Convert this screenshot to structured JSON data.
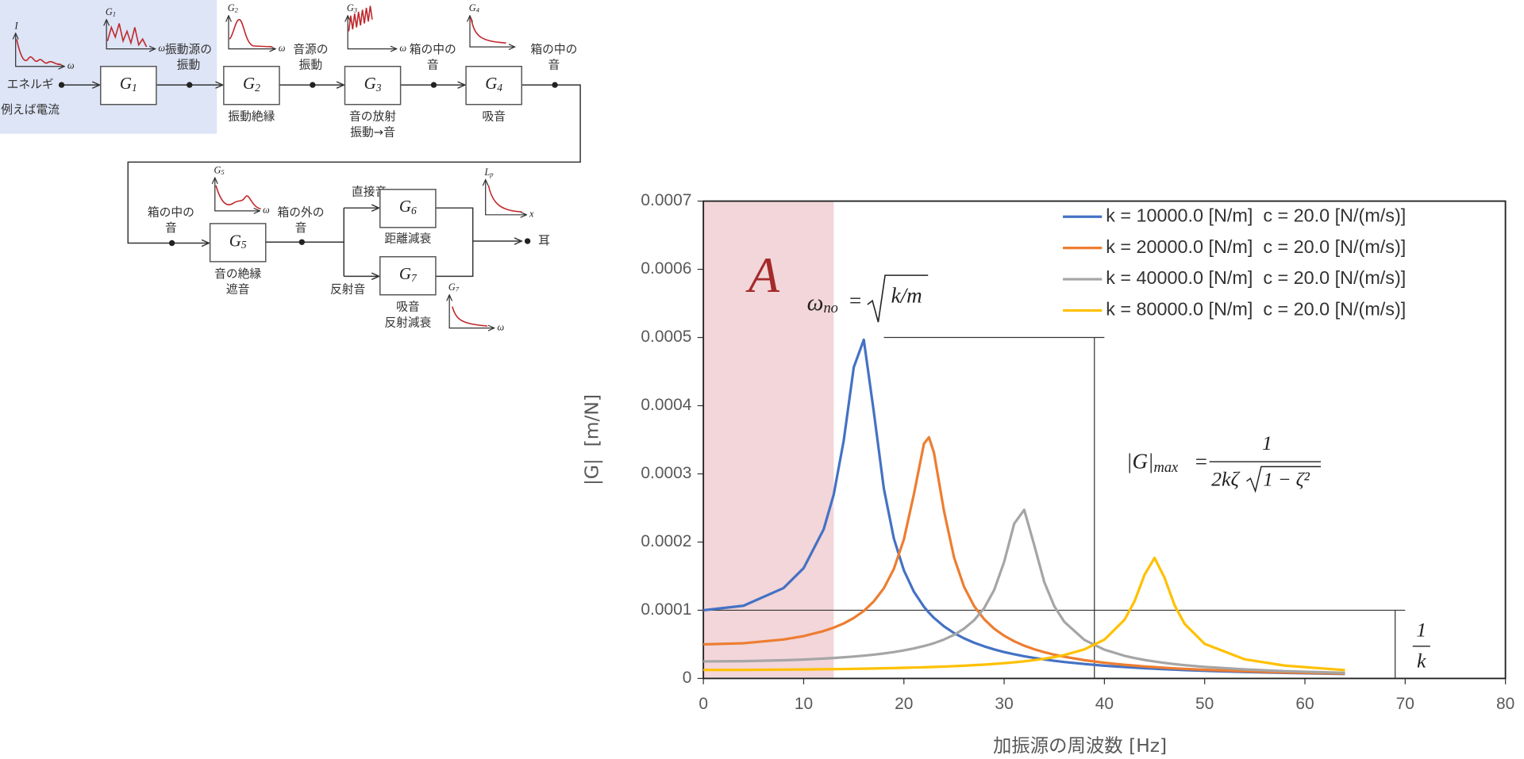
{
  "diagram": {
    "input": {
      "label": "エネルギ",
      "example": "例えば電流"
    },
    "blocks": [
      {
        "symbol": "G",
        "sub": "1"
      },
      {
        "symbol": "G",
        "sub": "2",
        "caption": [
          "振動絶縁"
        ]
      },
      {
        "symbol": "G",
        "sub": "3",
        "caption": [
          "音の放射",
          "振動→音"
        ]
      },
      {
        "symbol": "G",
        "sub": "4",
        "caption": [
          "吸音"
        ]
      },
      {
        "symbol": "G",
        "sub": "5",
        "caption": [
          "音の絶縁",
          "遮音"
        ]
      },
      {
        "symbol": "G",
        "sub": "6",
        "caption": [
          "距離減衰"
        ]
      },
      {
        "symbol": "G",
        "sub": "7",
        "caption": [
          "吸音",
          "反射減衰"
        ]
      }
    ],
    "signals": [
      [
        "振動源の",
        "振動"
      ],
      [
        "音源の",
        "振動"
      ],
      [
        "箱の中の",
        "音"
      ],
      [
        "箱の中の",
        "音"
      ],
      [
        "箱の中の",
        "音"
      ],
      [
        "箱の外の",
        "音"
      ]
    ],
    "paths": [
      "直接音",
      "反射音"
    ],
    "output": "耳",
    "sketches": [
      {
        "y": "I",
        "x": "ω"
      },
      {
        "y": "G",
        "y_sub": "1",
        "x": "ω"
      },
      {
        "y": "G",
        "y_sub": "2",
        "x": "ω"
      },
      {
        "y": "G",
        "y_sub": "3",
        "x": "ω"
      },
      {
        "y": "G",
        "y_sub": "4"
      },
      {
        "y": "G",
        "y_sub": "5",
        "x": "ω"
      },
      {
        "y": "L",
        "y_sub": "p",
        "x": "x"
      },
      {
        "y": "G",
        "y_sub": "7",
        "x": "ω"
      }
    ]
  },
  "chart_data": {
    "type": "line",
    "x_label": "加振源の周波数 [Hz]",
    "y_label": "|G|  [m/N]",
    "xlim": [
      0,
      80
    ],
    "xticks": [
      0,
      10,
      20,
      30,
      40,
      50,
      60,
      70,
      80
    ],
    "ylim": [
      0,
      0.0007
    ],
    "yticks": [
      0,
      0.0001,
      0.0002,
      0.0003,
      0.0004,
      0.0005,
      0.0006,
      0.0007
    ],
    "grid": false,
    "legend": "upper right",
    "x": [
      0,
      4,
      8,
      10,
      12,
      13,
      14,
      15,
      16,
      17,
      18,
      19,
      20,
      21,
      22,
      22.5,
      23,
      24,
      25,
      26,
      27,
      28,
      29,
      30,
      31,
      32,
      33,
      34,
      35,
      36,
      38,
      40,
      42,
      43,
      44,
      45,
      46,
      47,
      48,
      50,
      54,
      58,
      64
    ],
    "series": [
      {
        "name": "k = 10000.0 [N/m]  c = 20.0 [N/(m/s)]",
        "color": "#4472c4",
        "values": [
          0.0001,
          0.0001066,
          0.0001326,
          0.0001618,
          0.0002188,
          0.0002697,
          0.000349,
          0.0004564,
          0.0004967,
          0.0003908,
          0.0002784,
          0.0002051,
          0.0001584,
          0.0001271,
          0.0001051,
          9.64e-05,
          8.88e-05,
          7.64e-05,
          6.66e-05,
          5.88e-05,
          5.24e-05,
          4.71e-05,
          4.26e-05,
          3.87e-05,
          3.55e-05,
          3.26e-05,
          3.01e-05,
          2.79e-05,
          2.59e-05,
          2.41e-05,
          2.12e-05,
          1.87e-05,
          1.67e-05,
          1.58e-05,
          1.5e-05,
          1.43e-05,
          1.36e-05,
          1.29e-05,
          1.23e-05,
          1.12e-05,
          9.5e-06,
          8.1e-06,
          6.6e-06
        ]
      },
      {
        "name": "k = 20000.0 [N/m]  c = 20.0 [N/(m/s)]",
        "color": "#ed7d31",
        "values": [
          5e-05,
          5.16e-05,
          5.71e-05,
          6.21e-05,
          6.95e-05,
          7.45e-05,
          8.07e-05,
          8.87e-05,
          9.9e-05,
          0.000113,
          0.0001323,
          0.0001607,
          0.000204,
          0.0002704,
          0.0003442,
          0.0003537,
          0.0003309,
          0.0002455,
          0.0001776,
          0.0001344,
          0.0001062,
          8.69e-05,
          7.3e-05,
          6.26e-05,
          5.45e-05,
          4.8e-05,
          4.28e-05,
          3.85e-05,
          3.48e-05,
          3.18e-05,
          2.68e-05,
          2.3e-05,
          2e-05,
          1.88e-05,
          1.76e-05,
          1.66e-05,
          1.57e-05,
          1.48e-05,
          1.4e-05,
          1.27e-05,
          1.05e-05,
          8.8e-06,
          7e-06
        ]
      },
      {
        "name": "k = 40000.0 [N/m]  c = 20.0 [N/(m/s)]",
        "color": "#a5a5a5",
        "values": [
          2.5e-05,
          2.54e-05,
          2.67e-05,
          2.77e-05,
          2.91e-05,
          3e-05,
          3.1e-05,
          3.21e-05,
          3.34e-05,
          3.49e-05,
          3.66e-05,
          3.87e-05,
          4.11e-05,
          4.4e-05,
          4.75e-05,
          4.95e-05,
          5.17e-05,
          5.71e-05,
          6.39e-05,
          7.3e-05,
          8.53e-05,
          0.000103,
          0.0001296,
          0.000171,
          0.0002269,
          0.0002473,
          0.0001955,
          0.0001414,
          0.0001059,
          8.3e-05,
          5.66e-05,
          4.22e-05,
          3.32e-05,
          2.99e-05,
          2.71e-05,
          2.48e-05,
          2.28e-05,
          2.1e-05,
          1.95e-05,
          1.69e-05,
          1.33e-05,
          1.07e-05,
          8.2e-06
        ]
      },
      {
        "name": "k = 80000.0 [N/m]  c = 20.0 [N/(m/s)]",
        "color": "#ffc000",
        "values": [
          1.25e-05,
          1.26e-05,
          1.29e-05,
          1.31e-05,
          1.35e-05,
          1.36e-05,
          1.38e-05,
          1.41e-05,
          1.43e-05,
          1.46e-05,
          1.49e-05,
          1.52e-05,
          1.56e-05,
          1.6e-05,
          1.64e-05,
          1.66e-05,
          1.69e-05,
          1.74e-05,
          1.8e-05,
          1.87e-05,
          1.95e-05,
          2.03e-05,
          2.13e-05,
          2.24e-05,
          2.37e-05,
          2.51e-05,
          2.69e-05,
          2.89e-05,
          3.13e-05,
          3.43e-05,
          4.26e-05,
          5.69e-05,
          8.6e-05,
          0.000113,
          0.0001519,
          0.0001768,
          0.0001476,
          0.0001073,
          8e-05,
          5.07e-05,
          2.8e-05,
          1.88e-05,
          1.22e-05
        ]
      }
    ],
    "highlight": {
      "x": [
        0,
        13
      ],
      "color": "#f2d6d9"
    },
    "guides": [
      {
        "y": 0.0005,
        "x": [
          18,
          40
        ]
      },
      {
        "x": 39,
        "y": [
          0,
          0.0005
        ]
      },
      {
        "y": 0.0001,
        "x": [
          0,
          70
        ]
      },
      {
        "x": 69,
        "y": [
          0,
          0.0001
        ]
      }
    ],
    "annotations": {
      "region": "A",
      "omega": "ω",
      "omega_sub": "no",
      "omega_eq": "=",
      "omega_rhs": "k/m",
      "gmax": "|G|",
      "gmax_sub": "max",
      "gmax_eq": "=",
      "gmax_num": "1",
      "gmax_den_a": "2kζ",
      "gmax_den_b": "1 − ζ²",
      "inv_num": "1",
      "inv_den": "k"
    }
  }
}
